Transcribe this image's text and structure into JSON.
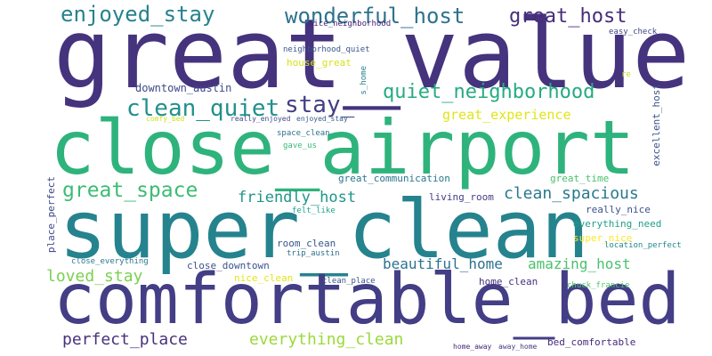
{
  "words": [
    {
      "text": "great_value",
      "color": "#45337d"
    },
    {
      "text": "close_airport",
      "color": "#2eb37c"
    },
    {
      "text": "super_clean",
      "color": "#25838e"
    },
    {
      "text": "comfortable_bed",
      "color": "#433e85"
    },
    {
      "text": "enjoyed_stay",
      "color": "#26828e"
    },
    {
      "text": "wonderful_host",
      "color": "#2c728e"
    },
    {
      "text": "great_host",
      "color": "#472c7a"
    },
    {
      "text": "quiet_neighborhood",
      "color": "#25ab82"
    },
    {
      "text": "clean_quiet",
      "color": "#21908d"
    },
    {
      "text": "stay_",
      "color": "#433e85"
    },
    {
      "text": "great_experience",
      "color": "#e2e418"
    },
    {
      "text": "great_space",
      "color": "#3dbc74"
    },
    {
      "text": "friendly_host",
      "color": "#1f958b"
    },
    {
      "text": "clean_spacious",
      "color": "#2a788e"
    },
    {
      "text": "beautiful_home",
      "color": "#2c728e"
    },
    {
      "text": "amazing_host",
      "color": "#4ac16d"
    },
    {
      "text": "loved_stay",
      "color": "#7ad151"
    },
    {
      "text": "perfect_place",
      "color": "#46327e"
    },
    {
      "text": "everything_clean",
      "color": "#9bd93c"
    },
    {
      "text": "downtown_austin",
      "color": "#3e4989"
    },
    {
      "text": "nice_neighborhood",
      "color": "#482173"
    },
    {
      "text": "neighborhood_quiet",
      "color": "#39558c"
    },
    {
      "text": "house_great",
      "color": "#d5e21a"
    },
    {
      "text": "s_home",
      "color": "#26828e"
    },
    {
      "text": "easy_check",
      "color": "#3f4788"
    },
    {
      "text": "re",
      "color": "#bddf26"
    },
    {
      "text": "excellent_host",
      "color": "#3b528b"
    },
    {
      "text": "comfy_bed",
      "color": "#cae11f"
    },
    {
      "text": "really_enjoyed",
      "color": "#3e4a89"
    },
    {
      "text": "enjoyed_stay",
      "color": "#365d8d"
    },
    {
      "text": "space_clean",
      "color": "#2d718e"
    },
    {
      "text": "gave_us",
      "color": "#37b878"
    },
    {
      "text": "great_communication",
      "color": "#2a768e"
    },
    {
      "text": "great_time",
      "color": "#4ac16d"
    },
    {
      "text": "living_room",
      "color": "#433d84"
    },
    {
      "text": "really_nice",
      "color": "#3b528b"
    },
    {
      "text": "everything_need",
      "color": "#1f9e89"
    },
    {
      "text": "super_nice",
      "color": "#fde725"
    },
    {
      "text": "location_perfect",
      "color": "#24868e"
    },
    {
      "text": "felt_like",
      "color": "#20a486"
    },
    {
      "text": "place_perfect",
      "color": "#3f4889"
    },
    {
      "text": "close_downtown",
      "color": "#3b528b"
    },
    {
      "text": "room_clean",
      "color": "#39568c"
    },
    {
      "text": "trip_austin",
      "color": "#2d708e"
    },
    {
      "text": "close_everything",
      "color": "#2a788e"
    },
    {
      "text": "nice_clean",
      "color": "#e5e419"
    },
    {
      "text": "clean_place",
      "color": "#3a548c"
    },
    {
      "text": "home_clean",
      "color": "#46307e"
    },
    {
      "text": "chuck_francie",
      "color": "#50c46a"
    },
    {
      "text": "home_away",
      "color": "#482475"
    },
    {
      "text": "away_home",
      "color": "#443a83"
    },
    {
      "text": "bed_comfortable",
      "color": "#482878"
    }
  ]
}
